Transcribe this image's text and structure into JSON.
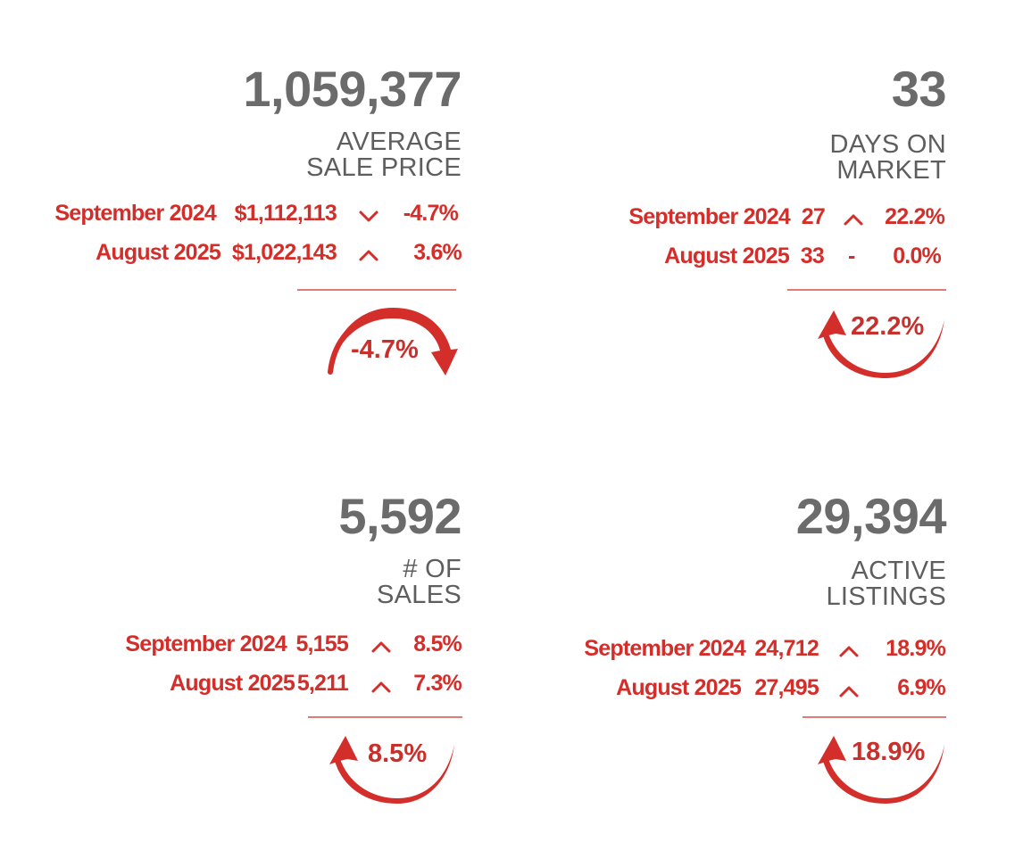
{
  "panels": {
    "avg_price": {
      "value": "1,059,377",
      "label_line1": "AVERAGE",
      "label_line2": "SALE PRICE",
      "row1": {
        "period": "September 2024",
        "value": "$1,112,113",
        "direction": "down",
        "pct": "-4.7%"
      },
      "row2": {
        "period": "August 2025",
        "value": "$1,022,143",
        "direction": "up",
        "pct": "3.6%"
      },
      "arc_label": "-4.7%",
      "arc_direction": "down"
    },
    "days_on_market": {
      "value": "33",
      "label_line1": "DAYS ON",
      "label_line2": "MARKET",
      "row1": {
        "period": "September 2024",
        "value": "27",
        "direction": "up",
        "pct": "22.2%"
      },
      "row2": {
        "period": "August 2025",
        "value": "33",
        "direction": "none",
        "dash": "-",
        "pct": "0.0%"
      },
      "arc_label": "22.2%",
      "arc_direction": "up"
    },
    "num_sales": {
      "value": "5,592",
      "label_line1": "# OF",
      "label_line2": "SALES",
      "row1": {
        "period": "September 2024",
        "value": "5,155",
        "direction": "up",
        "pct": "8.5%"
      },
      "row2": {
        "period": "August 2025",
        "value": "5,211",
        "direction": "up",
        "pct": "7.3%"
      },
      "arc_label": "8.5%",
      "arc_direction": "up"
    },
    "active_listings": {
      "value": "29,394",
      "label_line1": "ACTIVE",
      "label_line2": "LISTINGS",
      "row1": {
        "period": "September 2024",
        "value": "24,712",
        "direction": "up",
        "pct": "18.9%"
      },
      "row2": {
        "period": "August 2025",
        "value": "27,495",
        "direction": "up",
        "pct": "6.9%"
      },
      "arc_label": "18.9%",
      "arc_direction": "up"
    }
  },
  "colors": {
    "accent": "#d42e2a",
    "big_number": "#6b6b6b",
    "label": "#5e5e5e"
  }
}
